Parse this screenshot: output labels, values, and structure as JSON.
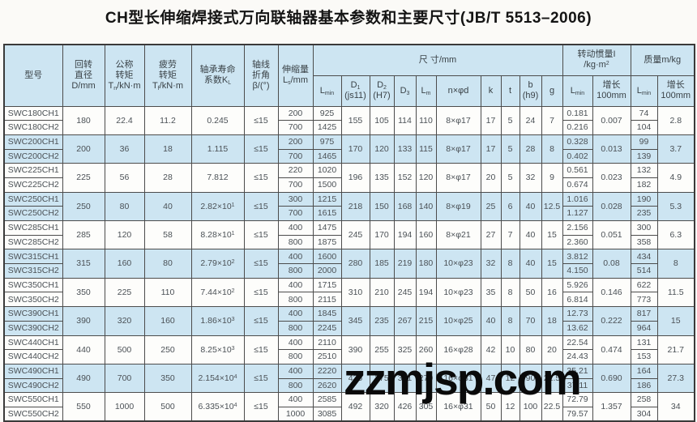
{
  "title": "CH型长伸缩焊接式万向联轴器基本参数和主要尺寸(JB/T 5513–2006)",
  "watermark": "zzmjsp.com",
  "colors": {
    "header_bg": "#cde5f2",
    "shaded_row_bg": "#cde5f2",
    "plain_row_bg": "#fdfdfb",
    "border": "#4c4c4c",
    "text": "#4b5156",
    "watermark": "#0a0a0a"
  },
  "table": {
    "header": {
      "model": [
        "型号"
      ],
      "rotary_diameter": [
        "回转",
        "直径",
        "D/mm"
      ],
      "nominal_torque": [
        "公称",
        "转矩",
        "T_{n}/kN·m"
      ],
      "fatigue_torque": [
        "疲劳",
        "转矩",
        "T_{f}/kN·m"
      ],
      "bearing_life": [
        "轴承寿命",
        "系数K_{L}"
      ],
      "deflection_angle": [
        "轴线",
        "折角",
        "β/(°)"
      ],
      "extension": [
        "伸缩量",
        "L_{s}/mm"
      ],
      "dimensions_group": [
        "尺 寸/mm"
      ],
      "inertia_group": [
        "转动惯量I",
        "/kg·m^{2}"
      ],
      "mass_group": [
        "质量m/kg"
      ],
      "dim_subcols": [
        [
          "L_{min}"
        ],
        [
          "D_{1}",
          "(js11)"
        ],
        [
          "D_{2}",
          "(H7)"
        ],
        [
          "D_{3}"
        ],
        [
          "L_{m}"
        ],
        [
          "n×φd"
        ],
        [
          "k"
        ],
        [
          "t"
        ],
        [
          "b",
          "(h9)"
        ],
        [
          "g"
        ]
      ],
      "inertia_subcols": [
        [
          "L_{min}"
        ],
        [
          "增长",
          "100mm"
        ]
      ],
      "mass_subcols": [
        [
          "L_{min}"
        ],
        [
          "增长",
          "100mm"
        ]
      ]
    },
    "groups": [
      {
        "models": [
          "SWC180CH1",
          "SWC180CH2"
        ],
        "D": "180",
        "Tn": "22.4",
        "Tf": "11.2",
        "KL": "0.245",
        "beta": "≤15",
        "Ls": [
          "200",
          "700"
        ],
        "Lmin": [
          "925",
          "1425"
        ],
        "D1": "155",
        "D2": "105",
        "D3": "114",
        "Lm": "110",
        "n_d": "8×φ17",
        "k": "17",
        "t": "5",
        "b": "24",
        "g": "7",
        "I_Lmin": [
          "0.181",
          "0.216"
        ],
        "I_inc": "0.007",
        "m_Lmin": [
          "74",
          "104"
        ],
        "m_inc": "2.8",
        "shaded": false
      },
      {
        "models": [
          "SWC200CH1",
          "SWC200CH2"
        ],
        "D": "200",
        "Tn": "36",
        "Tf": "18",
        "KL": "1.115",
        "beta": "≤15",
        "Ls": [
          "200",
          "700"
        ],
        "Lmin": [
          "975",
          "1465"
        ],
        "D1": "170",
        "D2": "120",
        "D3": "133",
        "Lm": "115",
        "n_d": "8×φ17",
        "k": "17",
        "t": "5",
        "b": "28",
        "g": "8",
        "I_Lmin": [
          "0.328",
          "0.402"
        ],
        "I_inc": "0.013",
        "m_Lmin": [
          "99",
          "139"
        ],
        "m_inc": "3.7",
        "shaded": true
      },
      {
        "models": [
          "SWC225CH1",
          "SWC225CH2"
        ],
        "D": "225",
        "Tn": "56",
        "Tf": "28",
        "KL": "7.812",
        "beta": "≤15",
        "Ls": [
          "220",
          "700"
        ],
        "Lmin": [
          "1020",
          "1500"
        ],
        "D1": "196",
        "D2": "135",
        "D3": "152",
        "Lm": "120",
        "n_d": "8×φ17",
        "k": "20",
        "t": "5",
        "b": "32",
        "g": "9",
        "I_Lmin": [
          "0.561",
          "0.674"
        ],
        "I_inc": "0.023",
        "m_Lmin": [
          "132",
          "182"
        ],
        "m_inc": "4.9",
        "shaded": false
      },
      {
        "models": [
          "SWC250CH1",
          "SWC250CH2"
        ],
        "D": "250",
        "Tn": "80",
        "Tf": "40",
        "KL": "2.82×10^{1}",
        "beta": "≤15",
        "Ls": [
          "300",
          "700"
        ],
        "Lmin": [
          "1215",
          "1615"
        ],
        "D1": "218",
        "D2": "150",
        "D3": "168",
        "Lm": "140",
        "n_d": "8×φ19",
        "k": "25",
        "t": "6",
        "b": "40",
        "g": "12.5",
        "I_Lmin": [
          "1.016",
          "1.127"
        ],
        "I_inc": "0.028",
        "m_Lmin": [
          "190",
          "235"
        ],
        "m_inc": "5.3",
        "shaded": true
      },
      {
        "models": [
          "SWC285CH1",
          "SWC285CH2"
        ],
        "D": "285",
        "Tn": "120",
        "Tf": "58",
        "KL": "8.28×10^{1}",
        "beta": "≤15",
        "Ls": [
          "400",
          "800"
        ],
        "Lmin": [
          "1475",
          "1875"
        ],
        "D1": "245",
        "D2": "170",
        "D3": "194",
        "Lm": "160",
        "n_d": "8×φ21",
        "k": "27",
        "t": "7",
        "b": "40",
        "g": "15",
        "I_Lmin": [
          "2.156",
          "2.360"
        ],
        "I_inc": "0.051",
        "m_Lmin": [
          "300",
          "358"
        ],
        "m_inc": "6.3",
        "shaded": false
      },
      {
        "models": [
          "SWC315CH1",
          "SWC315CH2"
        ],
        "D": "315",
        "Tn": "160",
        "Tf": "80",
        "KL": "2.79×10^{2}",
        "beta": "≤15",
        "Ls": [
          "400",
          "800"
        ],
        "Lmin": [
          "1600",
          "2000"
        ],
        "D1": "280",
        "D2": "185",
        "D3": "219",
        "Lm": "180",
        "n_d": "10×φ23",
        "k": "32",
        "t": "8",
        "b": "40",
        "g": "15",
        "I_Lmin": [
          "3.812",
          "4.150"
        ],
        "I_inc": "0.08",
        "m_Lmin": [
          "434",
          "514"
        ],
        "m_inc": "8",
        "shaded": true
      },
      {
        "models": [
          "SWC350CH1",
          "SWC350CH2"
        ],
        "D": "350",
        "Tn": "225",
        "Tf": "110",
        "KL": "7.44×10^{2}",
        "beta": "≤15",
        "Ls": [
          "400",
          "800"
        ],
        "Lmin": [
          "1715",
          "2115"
        ],
        "D1": "310",
        "D2": "210",
        "D3": "245",
        "Lm": "194",
        "n_d": "10×φ23",
        "k": "35",
        "t": "8",
        "b": "50",
        "g": "16",
        "I_Lmin": [
          "5.926",
          "6.814"
        ],
        "I_inc": "0.146",
        "m_Lmin": [
          "622",
          "773"
        ],
        "m_inc": "11.5",
        "shaded": false
      },
      {
        "models": [
          "SWC390CH1",
          "SWC390CH2"
        ],
        "D": "390",
        "Tn": "320",
        "Tf": "160",
        "KL": "1.86×10^{3}",
        "beta": "≤15",
        "Ls": [
          "400",
          "800"
        ],
        "Lmin": [
          "1845",
          "2245"
        ],
        "D1": "345",
        "D2": "235",
        "D3": "267",
        "Lm": "215",
        "n_d": "10×φ25",
        "k": "40",
        "t": "8",
        "b": "70",
        "g": "18",
        "I_Lmin": [
          "12.73",
          "13.62"
        ],
        "I_inc": "0.222",
        "m_Lmin": [
          "817",
          "964"
        ],
        "m_inc": "15",
        "shaded": true
      },
      {
        "models": [
          "SWC440CH1",
          "SWC440CH2"
        ],
        "D": "440",
        "Tn": "500",
        "Tf": "250",
        "KL": "8.25×10^{3}",
        "beta": "≤15",
        "Ls": [
          "400",
          "800"
        ],
        "Lmin": [
          "2110",
          "2510"
        ],
        "D1": "390",
        "D2": "255",
        "D3": "325",
        "Lm": "260",
        "n_d": "16×φ28",
        "k": "42",
        "t": "10",
        "b": "80",
        "g": "20",
        "I_Lmin": [
          "22.54",
          "24.43"
        ],
        "I_inc": "0.474",
        "m_Lmin": [
          "131",
          "153"
        ],
        "m_inc": "21.7",
        "shaded": false
      },
      {
        "models": [
          "SWC490CH1",
          "SWC490CH2"
        ],
        "D": "490",
        "Tn": "700",
        "Tf": "350",
        "KL": "2.154×10^{4}",
        "beta": "≤15",
        "Ls": [
          "400",
          "800"
        ],
        "Lmin": [
          "2220",
          "2620"
        ],
        "D1": "435",
        "D2": "275",
        "D3": "351",
        "Lm": "270",
        "n_d": "16×φ31",
        "k": "47",
        "t": "12",
        "b": "90",
        "g": "22.5",
        "I_Lmin": [
          "35.21",
          "37.11"
        ],
        "I_inc": "0.690",
        "m_Lmin": [
          "164",
          "186"
        ],
        "m_inc": "27.3",
        "shaded": true
      },
      {
        "models": [
          "SWC550CH1",
          "SWC550CH2"
        ],
        "D": "550",
        "Tn": "1000",
        "Tf": "500",
        "KL": "6.335×10^{4}",
        "beta": "≤15",
        "Ls": [
          "400",
          "1000"
        ],
        "Lmin": [
          "2585",
          "3085"
        ],
        "D1": "492",
        "D2": "320",
        "D3": "426",
        "Lm": "305",
        "n_d": "16×φ31",
        "k": "50",
        "t": "12",
        "b": "100",
        "g": "22.5",
        "I_Lmin": [
          "72.79",
          "79.57"
        ],
        "I_inc": "1.357",
        "m_Lmin": [
          "258",
          "304"
        ],
        "m_inc": "34",
        "shaded": false
      }
    ]
  }
}
